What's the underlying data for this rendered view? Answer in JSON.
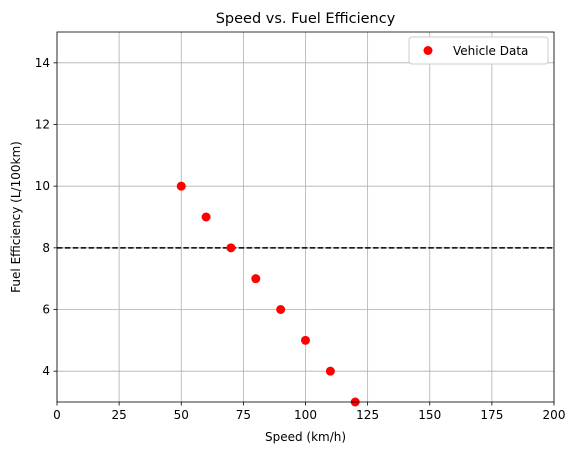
{
  "chart_data": {
    "type": "scatter",
    "title": "Speed vs. Fuel Efficiency",
    "xlabel": "Speed (km/h)",
    "ylabel": "Fuel Efficiency (L/100km)",
    "xlim": [
      0,
      200
    ],
    "ylim": [
      3,
      15
    ],
    "xticks": [
      0,
      25,
      50,
      75,
      100,
      125,
      150,
      175,
      200
    ],
    "yticks": [
      4,
      6,
      8,
      10,
      12,
      14
    ],
    "grid": true,
    "legend_position": "top-right",
    "series": [
      {
        "name": "Vehicle Data",
        "color": "#ff0000",
        "x": [
          50,
          60,
          70,
          80,
          90,
          100,
          110,
          120
        ],
        "y": [
          10,
          9,
          8,
          7,
          6,
          5,
          4,
          3
        ]
      }
    ],
    "reference_line": {
      "y": 8,
      "style": "dashed",
      "color": "#000000"
    }
  }
}
